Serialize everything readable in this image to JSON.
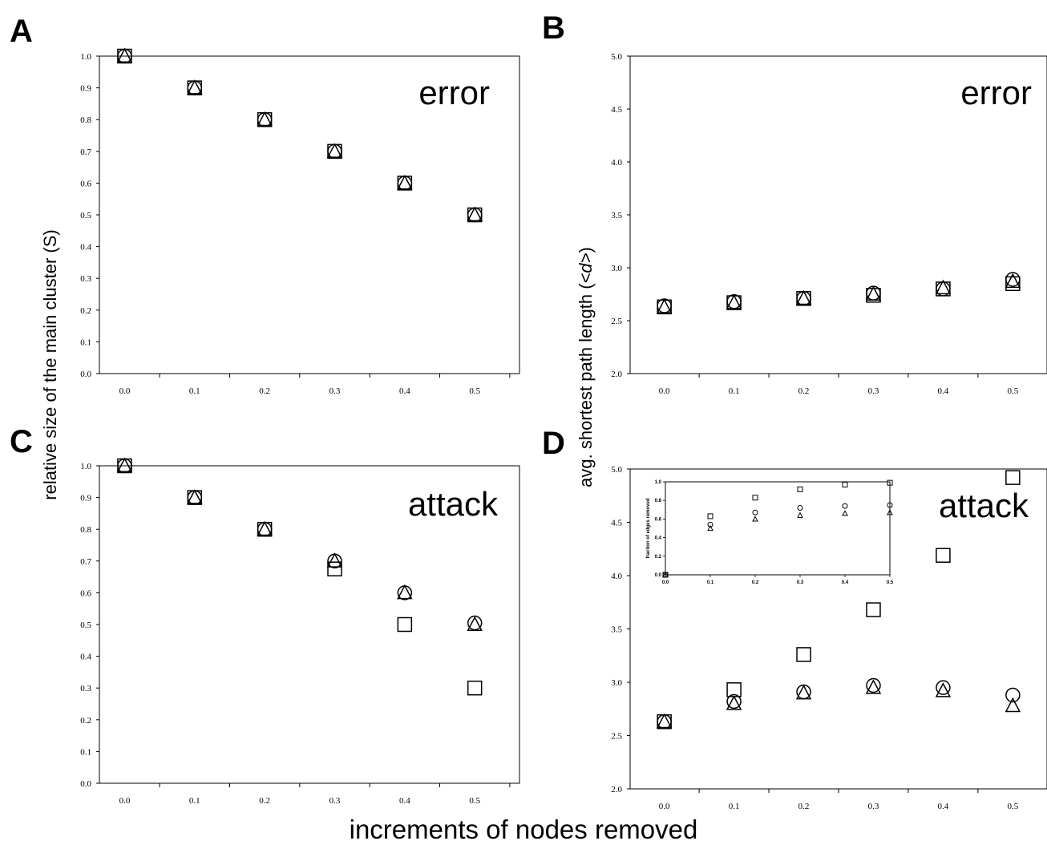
{
  "figure": {
    "ylabel_left": "relative size of the main cluster (S)",
    "ylabel_right_prefix": "avg. shortest path length (",
    "ylabel_right_symbol": "<d>",
    "ylabel_right_suffix": ")",
    "xlabel": "increments of nodes removed"
  },
  "chart_data": [
    {
      "panel": "A",
      "word": "error",
      "type": "scatter",
      "x": [
        0.0,
        0.1,
        0.2,
        0.3,
        0.4,
        0.5
      ],
      "xticks": [
        "0.0",
        "0.1",
        "0.2",
        "0.3",
        "0.4",
        "0.5"
      ],
      "yticks": [
        "0.0",
        "0.1",
        "0.2",
        "0.3",
        "0.4",
        "0.5",
        "0.6",
        "0.7",
        "0.8",
        "0.9",
        "1.0"
      ],
      "ylim": [
        0.0,
        1.0
      ],
      "grid": false,
      "series": [
        {
          "marker": "square",
          "values": [
            1.0,
            0.9,
            0.8,
            0.7,
            0.6,
            0.5
          ]
        },
        {
          "marker": "circle",
          "values": [
            1.0,
            0.9,
            0.8,
            0.7,
            0.6,
            0.5
          ]
        },
        {
          "marker": "triangle",
          "values": [
            1.0,
            0.9,
            0.8,
            0.7,
            0.6,
            0.5
          ]
        }
      ]
    },
    {
      "panel": "B",
      "word": "error",
      "type": "scatter",
      "x": [
        0.0,
        0.1,
        0.2,
        0.3,
        0.4,
        0.5
      ],
      "xticks": [
        "0.0",
        "0.1",
        "0.2",
        "0.3",
        "0.4",
        "0.5"
      ],
      "yticks": [
        "2.0",
        "2.5",
        "3.0",
        "3.5",
        "4.0",
        "4.5",
        "5.0"
      ],
      "ylim": [
        2.0,
        5.0
      ],
      "grid": false,
      "series": [
        {
          "marker": "square",
          "values": [
            2.63,
            2.67,
            2.71,
            2.74,
            2.8,
            2.85
          ]
        },
        {
          "marker": "circle",
          "values": [
            2.64,
            2.68,
            2.71,
            2.76,
            2.8,
            2.89
          ]
        },
        {
          "marker": "triangle",
          "values": [
            2.63,
            2.67,
            2.71,
            2.75,
            2.81,
            2.87
          ]
        }
      ]
    },
    {
      "panel": "C",
      "word": "attack",
      "type": "scatter",
      "x": [
        0.0,
        0.1,
        0.2,
        0.3,
        0.4,
        0.5
      ],
      "xticks": [
        "0.0",
        "0.1",
        "0.2",
        "0.3",
        "0.4",
        "0.5"
      ],
      "yticks": [
        "0.0",
        "0.1",
        "0.2",
        "0.3",
        "0.4",
        "0.5",
        "0.6",
        "0.7",
        "0.8",
        "0.9",
        "1.0"
      ],
      "ylim": [
        0.0,
        1.0
      ],
      "grid": false,
      "series": [
        {
          "marker": "square",
          "values": [
            1.0,
            0.9,
            0.8,
            0.675,
            0.5,
            0.3
          ]
        },
        {
          "marker": "circle",
          "values": [
            1.0,
            0.9,
            0.8,
            0.7,
            0.6,
            0.505
          ]
        },
        {
          "marker": "triangle",
          "values": [
            1.0,
            0.9,
            0.8,
            0.7,
            0.6,
            0.5
          ]
        }
      ]
    },
    {
      "panel": "D",
      "word": "attack",
      "type": "scatter",
      "x": [
        0.0,
        0.1,
        0.2,
        0.3,
        0.4,
        0.5
      ],
      "xticks": [
        "0.0",
        "0.1",
        "0.2",
        "0.3",
        "0.4",
        "0.5"
      ],
      "yticks": [
        "2.0",
        "2.5",
        "3.0",
        "3.5",
        "4.0",
        "4.5",
        "5.0"
      ],
      "ylim": [
        2.0,
        5.0
      ],
      "grid": false,
      "series": [
        {
          "marker": "square",
          "values": [
            2.63,
            2.93,
            3.26,
            3.68,
            4.19,
            4.92
          ]
        },
        {
          "marker": "circle",
          "values": [
            2.63,
            2.82,
            2.91,
            2.97,
            2.95,
            2.88
          ]
        },
        {
          "marker": "triangle",
          "values": [
            2.63,
            2.8,
            2.9,
            2.95,
            2.92,
            2.78
          ]
        }
      ],
      "inset": {
        "type": "scatter",
        "ylabel": "fraction of edges removed",
        "x": [
          0.0,
          0.1,
          0.2,
          0.3,
          0.4,
          0.5
        ],
        "xticks": [
          "0.0",
          "0.1",
          "0.2",
          "0.3",
          "0.4",
          "0.5"
        ],
        "yticks": [
          "0.0",
          "0.2",
          "0.4",
          "0.6",
          "0.8",
          "1.0"
        ],
        "ylim": [
          0.0,
          1.0
        ],
        "series": [
          {
            "marker": "square",
            "values": [
              0.0,
              0.63,
              0.83,
              0.92,
              0.97,
              0.99
            ]
          },
          {
            "marker": "circle",
            "values": [
              0.0,
              0.54,
              0.67,
              0.72,
              0.74,
              0.75
            ]
          },
          {
            "marker": "triangle",
            "values": [
              0.0,
              0.5,
              0.6,
              0.64,
              0.66,
              0.67
            ]
          }
        ]
      }
    }
  ]
}
